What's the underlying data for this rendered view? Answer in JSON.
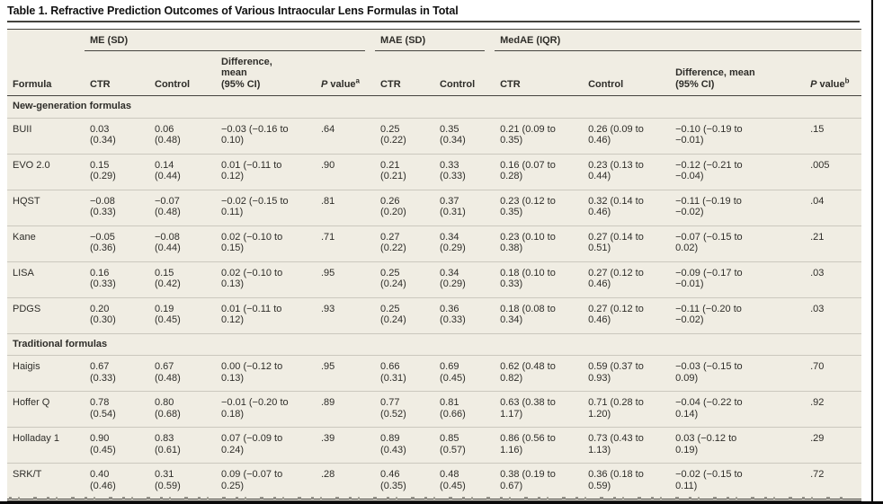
{
  "title": "Table 1. Refractive Prediction Outcomes of Various Intraocular Lens Formulas in Total",
  "table": {
    "columns_count": 11,
    "header": {
      "spanners": [
        "ME (SD)",
        "MAE (SD)",
        "MedAE (IQR)"
      ],
      "formula_label": "Formula",
      "ctr_label": "CTR",
      "control_label": "Control",
      "difference_me_label": "Difference,\nmean\n(95% CI)",
      "difference_medae_label": "Difference, mean\n(95% CI)",
      "p_char": "P",
      "value_word": " value",
      "sup_a": "a",
      "sup_b": "b"
    },
    "sections": [
      {
        "label": "New-generation formulas",
        "rows": [
          [
            "BUII",
            "0.03\n(0.34)",
            "0.06\n(0.48)",
            "−0.03 (−0.16 to\n0.10)",
            ".64",
            "0.25\n(0.22)",
            "0.35\n(0.34)",
            "0.21 (0.09 to\n0.35)",
            "0.26 (0.09 to\n0.46)",
            "−0.10 (−0.19 to\n−0.01)",
            ".15"
          ],
          [
            "EVO 2.0",
            "0.15\n(0.29)",
            "0.14\n(0.44)",
            "0.01 (−0.11 to\n0.12)",
            ".90",
            "0.21\n(0.21)",
            "0.33\n(0.33)",
            "0.16 (0.07 to\n0.28)",
            "0.23 (0.13 to\n0.44)",
            "−0.12 (−0.21 to\n−0.04)",
            ".005"
          ],
          [
            "HQST",
            "−0.08\n(0.33)",
            "−0.07\n(0.48)",
            "−0.02 (−0.15 to\n0.11)",
            ".81",
            "0.26\n(0.20)",
            "0.37\n(0.31)",
            "0.23 (0.12 to\n0.35)",
            "0.32 (0.14 to\n0.46)",
            "−0.11 (−0.19 to\n−0.02)",
            ".04"
          ],
          [
            "Kane",
            "−0.05\n(0.36)",
            "−0.08\n(0.44)",
            "0.02 (−0.10 to\n0.15)",
            ".71",
            "0.27\n(0.22)",
            "0.34\n(0.29)",
            "0.23 (0.10 to\n0.38)",
            "0.27 (0.14 to\n0.51)",
            "−0.07 (−0.15 to\n0.02)",
            ".21"
          ],
          [
            "LISA",
            "0.16\n(0.33)",
            "0.15\n(0.42)",
            "0.02 (−0.10 to\n0.13)",
            ".95",
            "0.25\n(0.24)",
            "0.34\n(0.29)",
            "0.18 (0.10 to\n0.33)",
            "0.27 (0.12 to\n0.46)",
            "−0.09 (−0.17 to\n−0.01)",
            ".03"
          ],
          [
            "PDGS",
            "0.20\n(0.30)",
            "0.19\n(0.45)",
            "0.01 (−0.11 to\n0.12)",
            ".93",
            "0.25\n(0.24)",
            "0.36\n(0.33)",
            "0.18 (0.08 to\n0.34)",
            "0.27 (0.12 to\n0.46)",
            "−0.11 (−0.20 to\n−0.02)",
            ".03"
          ]
        ]
      },
      {
        "label": "Traditional formulas",
        "rows": [
          [
            "Haigis",
            "0.67\n(0.33)",
            "0.67\n(0.48)",
            "0.00 (−0.12 to\n0.13)",
            ".95",
            "0.66\n(0.31)",
            "0.69\n(0.45)",
            "0.62 (0.48 to\n0.82)",
            "0.59 (0.37 to\n0.93)",
            "−0.03 (−0.15 to\n0.09)",
            ".70"
          ],
          [
            "Hoffer Q",
            "0.78\n(0.54)",
            "0.80\n(0.68)",
            "−0.01 (−0.20 to\n0.18)",
            ".89",
            "0.77\n(0.52)",
            "0.81\n(0.66)",
            "0.63 (0.38 to\n1.17)",
            "0.71 (0.28 to\n1.20)",
            "−0.04 (−0.22 to\n0.14)",
            ".92"
          ],
          [
            "Holladay 1",
            "0.90\n(0.45)",
            "0.83\n(0.61)",
            "0.07 (−0.09 to\n0.24)",
            ".39",
            "0.89\n(0.43)",
            "0.85\n(0.57)",
            "0.86 (0.56 to\n1.16)",
            "0.73 (0.43 to\n1.13)",
            "0.03 (−0.12 to\n0.19)",
            ".29"
          ],
          [
            "SRK/T",
            "0.40\n(0.46)",
            "0.31\n(0.59)",
            "0.09 (−0.07 to\n0.25)",
            ".28",
            "0.46\n(0.35)",
            "0.48\n(0.45)",
            "0.38 (0.19 to\n0.67)",
            "0.36 (0.18 to\n0.59)",
            "−0.02 (−0.15 to\n0.11)",
            ".72"
          ]
        ]
      }
    ]
  }
}
